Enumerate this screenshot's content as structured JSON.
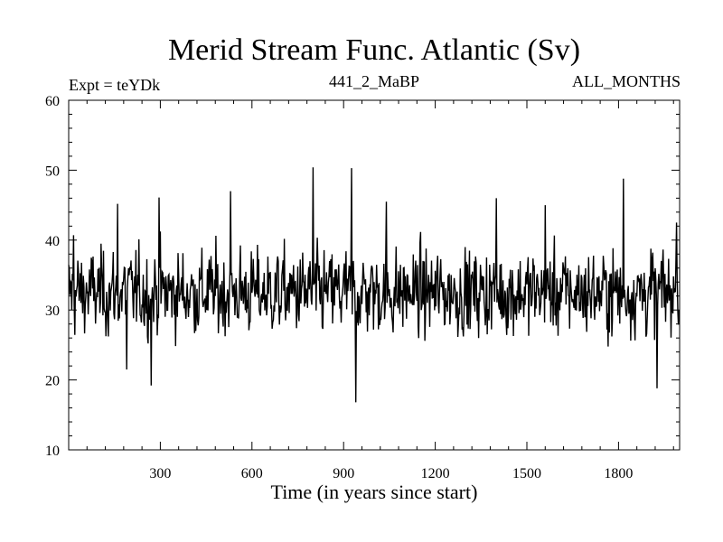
{
  "chart_data": {
    "type": "line",
    "title": "Merid Stream Func. Atlantic (Sv)",
    "subtitle_left": "Expt = teYDk",
    "subtitle_center": "441_2_MaBP",
    "subtitle_right": "ALL_MONTHS",
    "xlabel": "Time (in years since start)",
    "ylabel": "",
    "xlim": [
      0,
      2000
    ],
    "ylim": [
      10,
      60
    ],
    "xticks": [
      300,
      600,
      900,
      1200,
      1500,
      1800
    ],
    "yticks": [
      10,
      20,
      30,
      40,
      50,
      60
    ],
    "series": [
      {
        "name": "Merid Stream Func. Atlantic",
        "color": "#000000",
        "mean": 32.5,
        "approx_range": [
          16.8,
          50.4
        ],
        "notable_points": [
          {
            "x": 15,
            "y": 40.7
          },
          {
            "x": 160,
            "y": 45.2
          },
          {
            "x": 190,
            "y": 21.5
          },
          {
            "x": 270,
            "y": 19.2
          },
          {
            "x": 295,
            "y": 46.1
          },
          {
            "x": 530,
            "y": 47.0
          },
          {
            "x": 800,
            "y": 50.4
          },
          {
            "x": 925,
            "y": 50.3
          },
          {
            "x": 940,
            "y": 16.8
          },
          {
            "x": 1040,
            "y": 45.5
          },
          {
            "x": 1400,
            "y": 46.0
          },
          {
            "x": 1560,
            "y": 45.0
          },
          {
            "x": 1815,
            "y": 48.8
          },
          {
            "x": 1925,
            "y": 18.8
          },
          {
            "x": 1990,
            "y": 42.5
          }
        ]
      }
    ]
  }
}
